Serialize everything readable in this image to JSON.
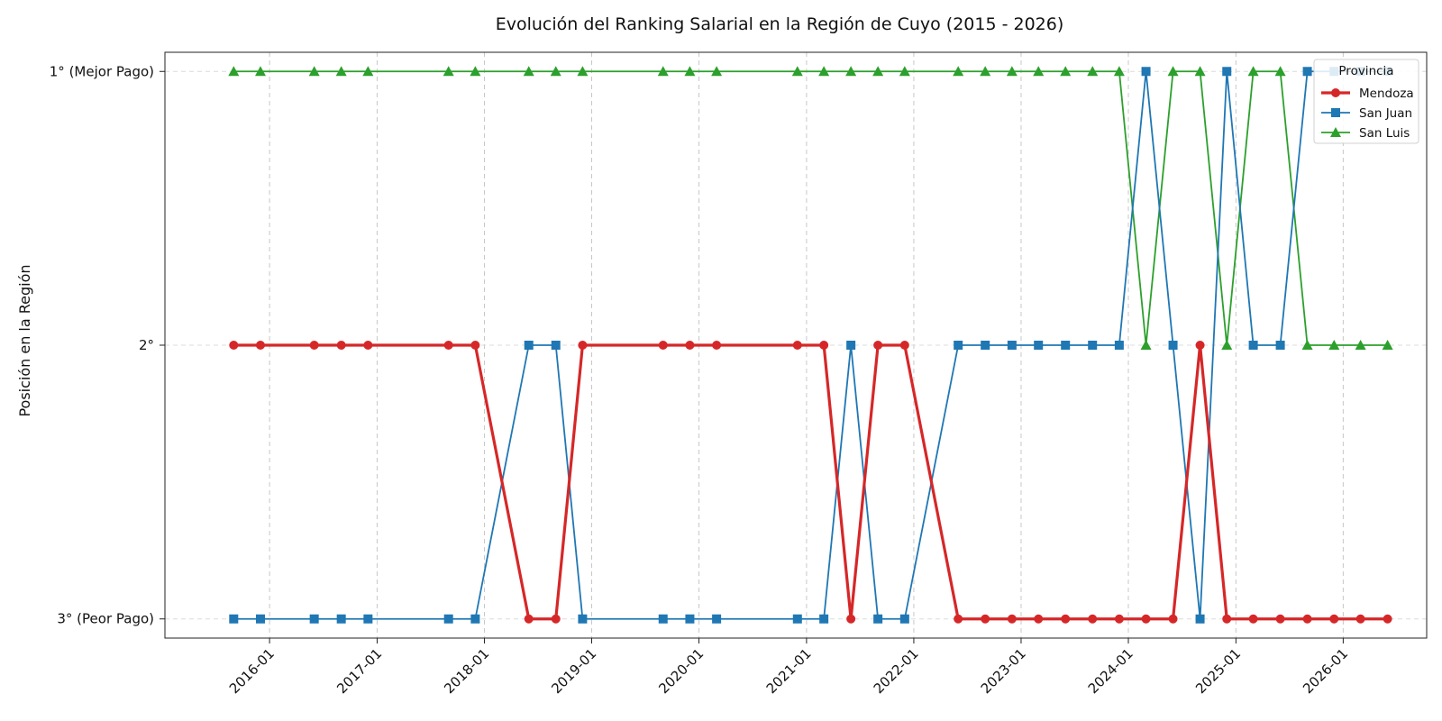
{
  "chart_data": {
    "type": "line",
    "title": "Evolución del Ranking Salarial en la Región de Cuyo (2015 - 2026)",
    "xlabel": "",
    "ylabel": "Posición en la Región",
    "x_tick_labels": [
      "2016-01",
      "2017-01",
      "2018-01",
      "2019-01",
      "2020-01",
      "2021-01",
      "2022-01",
      "2023-01",
      "2024-01",
      "2025-01",
      "2026-01"
    ],
    "y_ticks": [
      {
        "value": 1,
        "label": "1° (Mejor Pago)"
      },
      {
        "value": 2,
        "label": "2°"
      },
      {
        "value": 3,
        "label": "3° (Peor Pago)"
      }
    ],
    "y_inverted": true,
    "ylim": [
      3.07,
      0.93
    ],
    "xlim": [
      "2015-01-10",
      "2026-10-12"
    ],
    "grid": true,
    "legend": {
      "title": "Provincia",
      "position": "top-right"
    },
    "x": [
      "2015-09",
      "2015-12",
      "2016-06",
      "2016-09",
      "2016-12",
      "2017-09",
      "2017-12",
      "2018-06",
      "2018-09",
      "2018-12",
      "2019-09",
      "2019-12",
      "2020-03",
      "2020-12",
      "2021-03",
      "2021-06",
      "2021-09",
      "2021-12",
      "2022-06",
      "2022-09",
      "2022-12",
      "2023-03",
      "2023-06",
      "2023-09",
      "2023-12",
      "2024-03",
      "2024-06",
      "2024-09",
      "2024-12",
      "2025-03",
      "2025-06",
      "2025-09",
      "2025-12",
      "2026-03",
      "2026-06"
    ],
    "series": [
      {
        "name": "Mendoza",
        "color": "#d62728",
        "marker": "circle",
        "values": [
          2,
          2,
          2,
          2,
          2,
          2,
          2,
          3,
          3,
          2,
          2,
          2,
          2,
          2,
          2,
          3,
          2,
          2,
          3,
          3,
          3,
          3,
          3,
          3,
          3,
          3,
          3,
          2,
          3,
          3,
          3,
          3,
          3,
          3,
          3
        ]
      },
      {
        "name": "San Juan",
        "color": "#1f77b4",
        "marker": "square",
        "values": [
          3,
          3,
          3,
          3,
          3,
          3,
          3,
          2,
          2,
          3,
          3,
          3,
          3,
          3,
          3,
          2,
          3,
          3,
          2,
          2,
          2,
          2,
          2,
          2,
          2,
          1,
          2,
          3,
          1,
          2,
          2,
          1,
          1,
          1,
          1
        ]
      },
      {
        "name": "San Luis",
        "color": "#2ca02c",
        "marker": "triangle",
        "values": [
          1,
          1,
          1,
          1,
          1,
          1,
          1,
          1,
          1,
          1,
          1,
          1,
          1,
          1,
          1,
          1,
          1,
          1,
          1,
          1,
          1,
          1,
          1,
          1,
          1,
          2,
          1,
          1,
          2,
          1,
          1,
          2,
          2,
          2,
          2
        ]
      }
    ]
  }
}
